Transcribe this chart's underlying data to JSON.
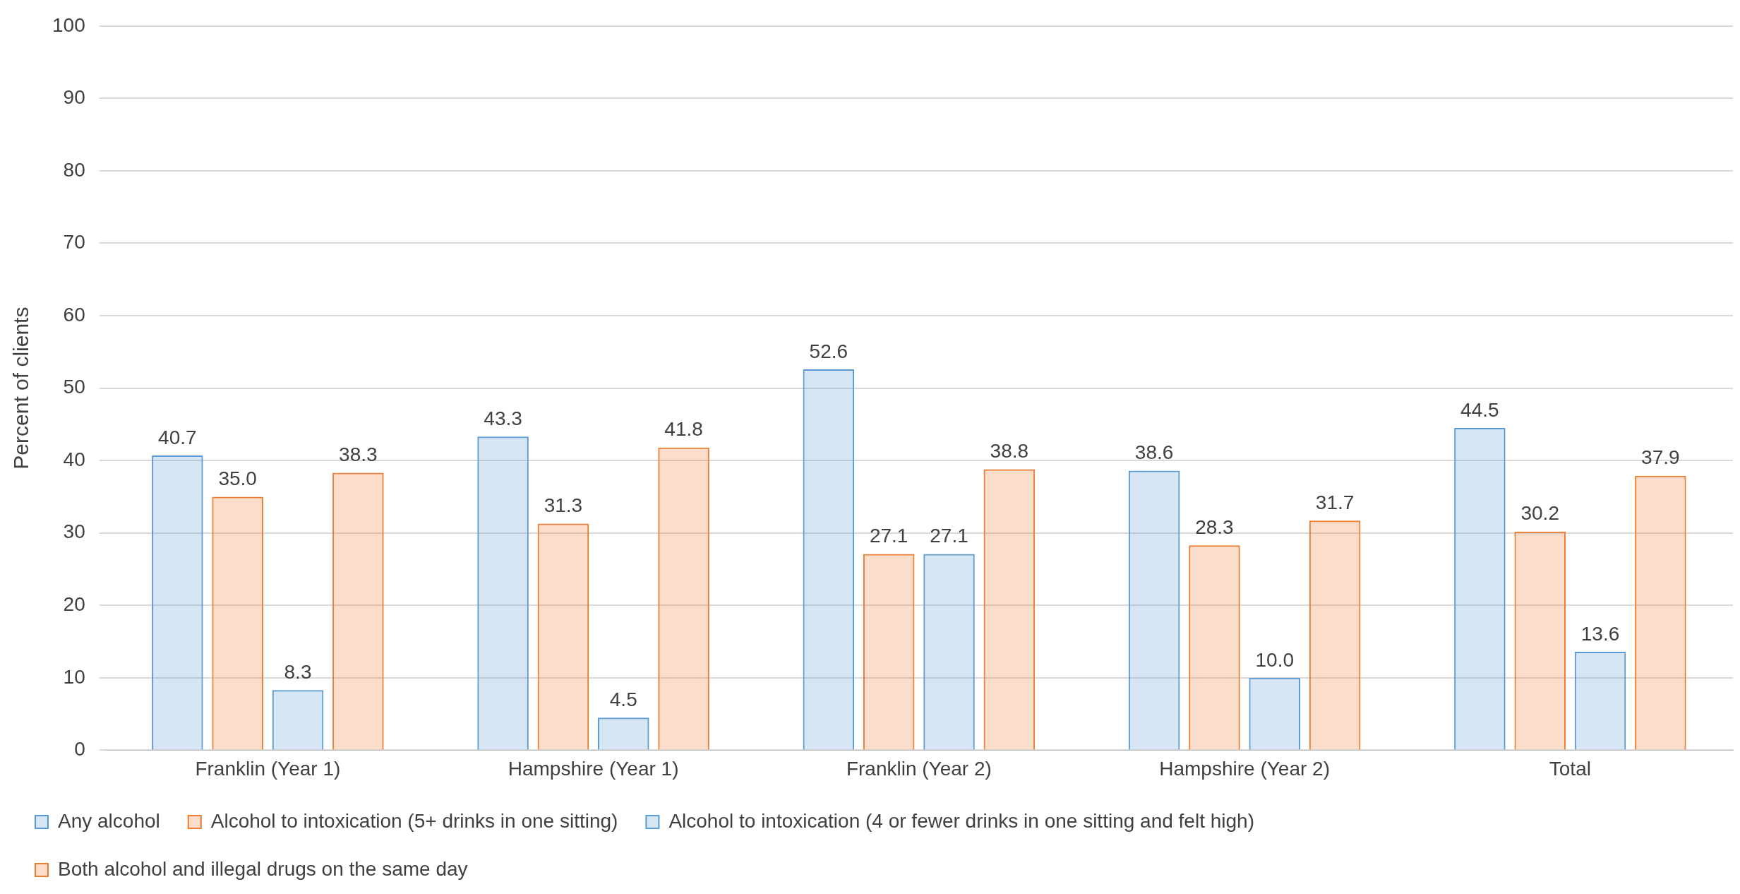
{
  "chart_data": {
    "type": "bar",
    "ylabel": "Percent of clients",
    "categories": [
      "Franklin (Year 1)",
      "Hampshire (Year 1)",
      "Franklin (Year 2)",
      "Hampshire (Year 2)",
      "Total"
    ],
    "series": [
      {
        "name": "Any alcohol",
        "color": "#5b9bd5",
        "values": [
          40.7,
          43.3,
          52.6,
          38.6,
          44.5
        ],
        "value_labels": [
          "40.7",
          "43.3",
          "52.6",
          "38.6",
          "44.5"
        ]
      },
      {
        "name": "Alcohol to intoxication (5+ drinks in one sitting)",
        "color": "#ed7d31",
        "values": [
          35.0,
          31.3,
          27.1,
          28.3,
          30.2
        ],
        "value_labels": [
          "35.0",
          "31.3",
          "27.1",
          "28.3",
          "30.2"
        ]
      },
      {
        "name": "Alcohol to intoxication (4 or fewer drinks in one sitting and felt high)",
        "color": "#5b9bd5",
        "values": [
          8.3,
          4.5,
          27.1,
          10.0,
          13.6
        ],
        "value_labels": [
          "8.3",
          "4.5",
          "27.1",
          "10.0",
          "13.6"
        ]
      },
      {
        "name": "Both alcohol and illegal drugs on the same day",
        "color": "#ed7d31",
        "values": [
          38.3,
          41.8,
          38.8,
          31.7,
          37.9
        ],
        "value_labels": [
          "38.3",
          "41.8",
          "38.8",
          "31.7",
          "37.9"
        ]
      }
    ],
    "ylim": [
      0,
      100
    ],
    "yticks": [
      0,
      10,
      20,
      30,
      40,
      50,
      60,
      70,
      80,
      90,
      100
    ],
    "grid": "y",
    "legend": "bottom"
  }
}
